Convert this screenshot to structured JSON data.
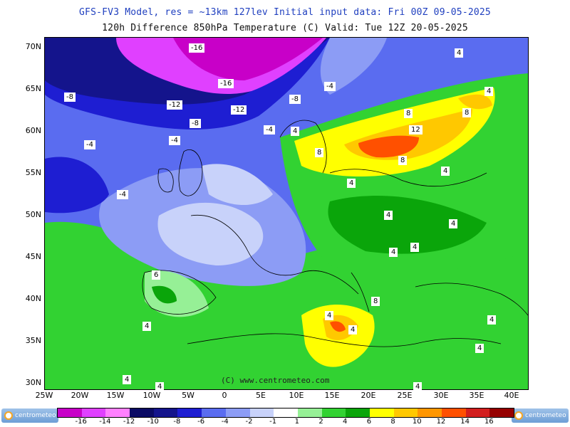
{
  "header": {
    "title_line1": "GFS-FV3 Model, res = ~13km 127lev   Initial input data: Fri 00Z 09-05-2025",
    "title_line2": "120h Difference 850hPa Temperature (C)  Valid: Tue 12Z 20-05-2025"
  },
  "axes": {
    "lat_labels": [
      "70N",
      "65N",
      "60N",
      "55N",
      "50N",
      "45N",
      "40N",
      "35N",
      "30N"
    ],
    "lon_labels": [
      "25W",
      "20W",
      "15W",
      "10W",
      "5W",
      "0",
      "5E",
      "10E",
      "15E",
      "20E",
      "25E",
      "30E",
      "35E",
      "40E"
    ]
  },
  "contour_labels": [
    "-16",
    "-16",
    "-12",
    "-12",
    "-8",
    "-8",
    "-8",
    "-4",
    "-4",
    "-4",
    "-4",
    "-4",
    "4",
    "8",
    "12",
    "8",
    "8",
    "8",
    "4",
    "4",
    "4",
    "4",
    "4",
    "4",
    "4",
    "4",
    "4",
    "4",
    "8",
    "6",
    "4",
    "4",
    "4",
    "4",
    "4",
    "4"
  ],
  "copyright": "(C) www.centrometeo.com",
  "legend": {
    "ticks": [
      "-16",
      "-14",
      "-12",
      "-10",
      "-8",
      "-6",
      "-4",
      "-2",
      "-1",
      "1",
      "2",
      "4",
      "6",
      "8",
      "10",
      "12",
      "14",
      "16"
    ],
    "colors": [
      "#c800c8",
      "#e040ff",
      "#ff80ff",
      "#0a0a64",
      "#14148c",
      "#1e1ed2",
      "#5a6cf0",
      "#8c9cf5",
      "#c8d2fa",
      "#ffffff",
      "#96f096",
      "#32d232",
      "#0aa50a",
      "#ffff00",
      "#ffc800",
      "#ff9600",
      "#ff5000",
      "#d21e1e",
      "#960000"
    ]
  },
  "logo_text": "centrometeo"
}
